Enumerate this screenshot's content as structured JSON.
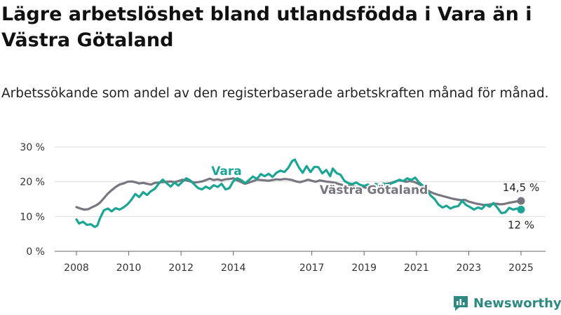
{
  "title": "Lägre arbetslöshet bland utlandsfödda i Vara än i Västra Götaland",
  "subtitle": "Arbetssökande som andel av den registerbaserade arbetskraften månad för månad.",
  "brand": {
    "name": "Newsworthy",
    "color": "#2c8a83"
  },
  "chart_data": {
    "type": "line",
    "title": "Lägre arbetslöshet bland utlandsfödda i Vara än i Västra Götaland",
    "subtitle": "Arbetssökande som andel av den registerbaserade arbetskraften månad för månad.",
    "xlabel": "",
    "ylabel": "",
    "y_unit": "%",
    "ylim": [
      0,
      30
    ],
    "xlim": [
      2007.5,
      2025.5
    ],
    "yticks": [
      0,
      10,
      20,
      30
    ],
    "ytick_labels": [
      "0 %",
      "10 %",
      "20 %",
      "30 %"
    ],
    "xticks": [
      2008,
      2010,
      2012,
      2014,
      2017,
      2019,
      2021,
      2023,
      2025
    ],
    "xtick_labels": [
      "2008",
      "2010",
      "2012",
      "2014",
      "2017",
      "2019",
      "2021",
      "2023",
      "2025"
    ],
    "grid": true,
    "series": [
      {
        "name": "Vara",
        "color": "#1aa595",
        "end_label": "12 %",
        "end_value": 12,
        "points": [
          [
            2008.0,
            9.2
          ],
          [
            2008.1,
            8.0
          ],
          [
            2008.25,
            8.5
          ],
          [
            2008.4,
            7.6
          ],
          [
            2008.55,
            7.8
          ],
          [
            2008.7,
            7.0
          ],
          [
            2008.8,
            7.4
          ],
          [
            2008.9,
            9.5
          ],
          [
            2009.05,
            11.8
          ],
          [
            2009.2,
            12.3
          ],
          [
            2009.35,
            11.5
          ],
          [
            2009.5,
            12.4
          ],
          [
            2009.65,
            12.0
          ],
          [
            2009.8,
            12.6
          ],
          [
            2009.95,
            13.5
          ],
          [
            2010.1,
            14.8
          ],
          [
            2010.25,
            16.5
          ],
          [
            2010.4,
            15.6
          ],
          [
            2010.55,
            17.0
          ],
          [
            2010.7,
            16.2
          ],
          [
            2010.85,
            17.3
          ],
          [
            2011.0,
            18.0
          ],
          [
            2011.15,
            19.5
          ],
          [
            2011.3,
            20.6
          ],
          [
            2011.45,
            19.6
          ],
          [
            2011.6,
            18.6
          ],
          [
            2011.75,
            19.8
          ],
          [
            2011.9,
            18.9
          ],
          [
            2012.05,
            20.0
          ],
          [
            2012.2,
            21.0
          ],
          [
            2012.35,
            20.4
          ],
          [
            2012.5,
            19.3
          ],
          [
            2012.65,
            18.2
          ],
          [
            2012.8,
            17.8
          ],
          [
            2012.95,
            18.6
          ],
          [
            2013.1,
            18.0
          ],
          [
            2013.25,
            19.0
          ],
          [
            2013.4,
            18.5
          ],
          [
            2013.55,
            19.4
          ],
          [
            2013.7,
            17.8
          ],
          [
            2013.85,
            18.2
          ],
          [
            2014.0,
            20.2
          ],
          [
            2014.15,
            21.0
          ],
          [
            2014.3,
            20.5
          ],
          [
            2014.45,
            19.6
          ],
          [
            2014.6,
            20.5
          ],
          [
            2014.75,
            21.5
          ],
          [
            2014.9,
            20.8
          ],
          [
            2015.05,
            22.2
          ],
          [
            2015.2,
            21.6
          ],
          [
            2015.35,
            22.3
          ],
          [
            2015.5,
            21.4
          ],
          [
            2015.65,
            22.6
          ],
          [
            2015.8,
            23.2
          ],
          [
            2015.95,
            22.8
          ],
          [
            2016.1,
            24.0
          ],
          [
            2016.25,
            26.0
          ],
          [
            2016.35,
            26.4
          ],
          [
            2016.5,
            24.2
          ],
          [
            2016.65,
            22.6
          ],
          [
            2016.8,
            24.5
          ],
          [
            2016.95,
            22.8
          ],
          [
            2017.1,
            24.3
          ],
          [
            2017.25,
            24.2
          ],
          [
            2017.4,
            22.4
          ],
          [
            2017.55,
            23.4
          ],
          [
            2017.7,
            21.6
          ],
          [
            2017.8,
            23.8
          ],
          [
            2017.95,
            22.5
          ],
          [
            2018.1,
            22.0
          ],
          [
            2018.25,
            20.2
          ],
          [
            2018.4,
            19.6
          ],
          [
            2018.55,
            19.3
          ],
          [
            2018.7,
            19.8
          ],
          [
            2018.85,
            19.1
          ],
          [
            2019.0,
            18.8
          ],
          [
            2019.15,
            19.2
          ],
          [
            2019.3,
            18.5
          ],
          [
            2019.45,
            19.4
          ],
          [
            2019.6,
            18.7
          ],
          [
            2019.75,
            19.5
          ],
          [
            2019.9,
            19.0
          ],
          [
            2020.05,
            19.6
          ],
          [
            2020.2,
            20.0
          ],
          [
            2020.35,
            20.6
          ],
          [
            2020.5,
            20.2
          ],
          [
            2020.65,
            21.0
          ],
          [
            2020.8,
            20.5
          ],
          [
            2020.95,
            21.2
          ],
          [
            2021.1,
            19.8
          ],
          [
            2021.25,
            18.9
          ],
          [
            2021.4,
            17.6
          ],
          [
            2021.55,
            16.0
          ],
          [
            2021.7,
            15.0
          ],
          [
            2021.85,
            13.4
          ],
          [
            2022.0,
            12.6
          ],
          [
            2022.15,
            13.1
          ],
          [
            2022.3,
            12.3
          ],
          [
            2022.45,
            12.8
          ],
          [
            2022.6,
            13.0
          ],
          [
            2022.75,
            14.5
          ],
          [
            2022.9,
            13.3
          ],
          [
            2023.05,
            12.7
          ],
          [
            2023.2,
            12.0
          ],
          [
            2023.35,
            12.6
          ],
          [
            2023.5,
            12.2
          ],
          [
            2023.65,
            13.4
          ],
          [
            2023.8,
            12.8
          ],
          [
            2023.95,
            13.9
          ],
          [
            2024.1,
            12.5
          ],
          [
            2024.25,
            11.0
          ],
          [
            2024.4,
            11.2
          ],
          [
            2024.55,
            12.5
          ],
          [
            2024.7,
            12.0
          ],
          [
            2024.85,
            12.3
          ],
          [
            2025.0,
            12.0
          ]
        ]
      },
      {
        "name": "Västra Götaland",
        "color": "#78767e",
        "end_label": "14,5 %",
        "end_value": 14.5,
        "points": [
          [
            2008.0,
            12.7
          ],
          [
            2008.15,
            12.3
          ],
          [
            2008.3,
            12.0
          ],
          [
            2008.45,
            12.1
          ],
          [
            2008.6,
            12.7
          ],
          [
            2008.75,
            13.2
          ],
          [
            2008.9,
            14.0
          ],
          [
            2009.05,
            15.3
          ],
          [
            2009.2,
            16.6
          ],
          [
            2009.35,
            17.6
          ],
          [
            2009.5,
            18.5
          ],
          [
            2009.65,
            19.2
          ],
          [
            2009.8,
            19.5
          ],
          [
            2009.95,
            20.0
          ],
          [
            2010.1,
            20.1
          ],
          [
            2010.25,
            19.9
          ],
          [
            2010.4,
            19.5
          ],
          [
            2010.55,
            19.7
          ],
          [
            2010.7,
            19.4
          ],
          [
            2010.85,
            19.2
          ],
          [
            2011.0,
            19.7
          ],
          [
            2011.15,
            19.8
          ],
          [
            2011.3,
            19.9
          ],
          [
            2011.45,
            20.0
          ],
          [
            2011.6,
            20.1
          ],
          [
            2011.75,
            19.9
          ],
          [
            2011.9,
            20.2
          ],
          [
            2012.05,
            20.6
          ],
          [
            2012.2,
            20.4
          ],
          [
            2012.35,
            20.1
          ],
          [
            2012.5,
            19.8
          ],
          [
            2012.65,
            19.9
          ],
          [
            2012.8,
            20.1
          ],
          [
            2012.95,
            20.5
          ],
          [
            2013.1,
            20.9
          ],
          [
            2013.25,
            20.5
          ],
          [
            2013.4,
            20.7
          ],
          [
            2013.55,
            20.4
          ],
          [
            2013.7,
            20.7
          ],
          [
            2013.85,
            20.8
          ],
          [
            2014.0,
            21.0
          ],
          [
            2014.15,
            20.4
          ],
          [
            2014.3,
            19.9
          ],
          [
            2014.45,
            19.4
          ],
          [
            2014.6,
            19.8
          ],
          [
            2014.75,
            20.2
          ],
          [
            2014.9,
            20.6
          ],
          [
            2015.05,
            20.5
          ],
          [
            2015.2,
            20.4
          ],
          [
            2015.35,
            20.3
          ],
          [
            2015.5,
            20.5
          ],
          [
            2015.65,
            20.7
          ],
          [
            2015.8,
            20.6
          ],
          [
            2015.95,
            20.8
          ],
          [
            2016.1,
            20.7
          ],
          [
            2016.25,
            20.5
          ],
          [
            2016.4,
            20.1
          ],
          [
            2016.55,
            19.9
          ],
          [
            2016.7,
            20.2
          ],
          [
            2016.85,
            20.6
          ],
          [
            2017.0,
            20.3
          ],
          [
            2017.15,
            20.0
          ],
          [
            2017.3,
            20.4
          ],
          [
            2017.45,
            20.2
          ],
          [
            2017.6,
            20.0
          ],
          [
            2017.75,
            19.9
          ],
          [
            2017.9,
            19.7
          ],
          [
            2018.05,
            19.3
          ],
          [
            2018.2,
            19.0
          ],
          [
            2018.35,
            18.9
          ],
          [
            2018.5,
            18.8
          ],
          [
            2018.65,
            18.6
          ],
          [
            2018.8,
            18.4
          ],
          [
            2018.95,
            18.5
          ],
          [
            2019.1,
            18.2
          ],
          [
            2019.25,
            18.6
          ],
          [
            2019.4,
            19.0
          ],
          [
            2019.55,
            19.3
          ],
          [
            2019.7,
            19.0
          ],
          [
            2019.85,
            19.4
          ],
          [
            2020.0,
            19.6
          ],
          [
            2020.15,
            20.0
          ],
          [
            2020.3,
            20.4
          ],
          [
            2020.45,
            20.3
          ],
          [
            2020.6,
            20.0
          ],
          [
            2020.75,
            20.2
          ],
          [
            2020.9,
            20.0
          ],
          [
            2021.05,
            19.5
          ],
          [
            2021.2,
            18.9
          ],
          [
            2021.35,
            18.1
          ],
          [
            2021.5,
            17.2
          ],
          [
            2021.65,
            16.7
          ],
          [
            2021.8,
            16.3
          ],
          [
            2021.95,
            16.0
          ],
          [
            2022.1,
            15.7
          ],
          [
            2022.25,
            15.4
          ],
          [
            2022.4,
            15.1
          ],
          [
            2022.55,
            14.9
          ],
          [
            2022.7,
            14.7
          ],
          [
            2022.85,
            14.8
          ],
          [
            2023.0,
            14.3
          ],
          [
            2023.15,
            14.0
          ],
          [
            2023.3,
            13.7
          ],
          [
            2023.45,
            13.5
          ],
          [
            2023.6,
            13.3
          ],
          [
            2023.75,
            13.4
          ],
          [
            2023.9,
            13.6
          ],
          [
            2024.05,
            13.7
          ],
          [
            2024.2,
            13.5
          ],
          [
            2024.35,
            13.6
          ],
          [
            2024.5,
            13.9
          ],
          [
            2024.65,
            14.1
          ],
          [
            2024.8,
            14.3
          ],
          [
            2025.0,
            14.5
          ]
        ]
      }
    ]
  }
}
